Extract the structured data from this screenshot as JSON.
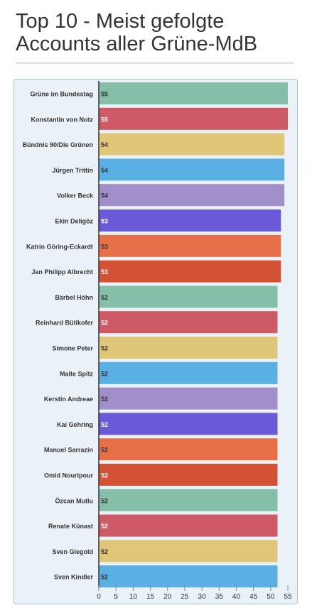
{
  "title": "Top 10 - Meist gefolgte Accounts aller Grüne-MdB",
  "chart_data": {
    "type": "bar",
    "orientation": "horizontal",
    "title": "Top 10 - Meist gefolgte Accounts aller Grüne-MdB",
    "xlabel": "",
    "ylabel": "",
    "xlim": [
      0,
      55
    ],
    "x_ticks": [
      0,
      5,
      10,
      15,
      20,
      25,
      30,
      35,
      40,
      45,
      50,
      55
    ],
    "grid": false,
    "categories": [
      "Grüne im Bundestag",
      "Konstantin von Notz",
      "Bündnis 90/Die Grünen",
      "Jürgen Trittin",
      "Volker Beck",
      "Ekin Deligöz",
      "Katrin Göring-Eckardt",
      "Jan Philipp Albrecht",
      "Bärbel Höhn",
      "Reinhard Bütikofer",
      "Simone Peter",
      "Malte Spitz",
      "Kerstin Andreae",
      "Kai Gehring",
      "Manuel Sarrazin",
      "Omid Nouripour",
      "Özcan Mutlu",
      "Renate Künast",
      "Sven Giegold",
      "Sven Kindler"
    ],
    "values": [
      55,
      55,
      54,
      54,
      54,
      53,
      53,
      53,
      52,
      52,
      52,
      52,
      52,
      52,
      52,
      52,
      52,
      52,
      52,
      52
    ],
    "colors": [
      "#86bfa9",
      "#cd5a64",
      "#e0c678",
      "#5ab0e2",
      "#a08fc8",
      "#6a5ad8",
      "#e87048",
      "#d35236"
    ],
    "value_label_colors": [
      "#333333",
      "#ffffff",
      "#333333",
      "#333333",
      "#333333",
      "#ffffff",
      "#333333",
      "#ffffff"
    ]
  }
}
